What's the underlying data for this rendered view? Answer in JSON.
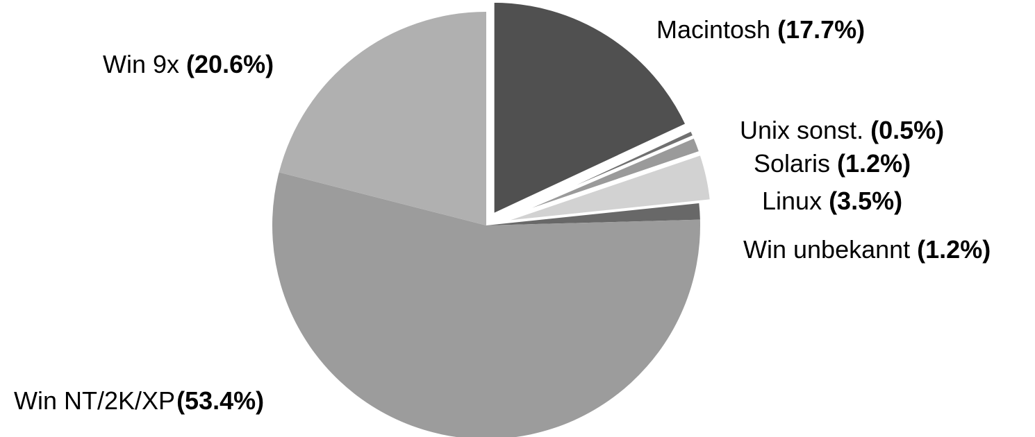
{
  "chart_data": {
    "type": "pie",
    "categories": [
      "Macintosh",
      "Unix sonst.",
      "Solaris",
      "Linux",
      "Win unbekannt",
      "Win NT/2K/XP",
      "Win 9x"
    ],
    "values": [
      17.7,
      0.5,
      1.2,
      3.5,
      1.2,
      53.4,
      20.6
    ],
    "value_labels": [
      "(17.7%)",
      "(0.5%)",
      "(1.2%)",
      "(3.5%)",
      "(1.2%)",
      "(53.4%)",
      "(20.6%)"
    ],
    "colors": [
      "#505050",
      "#707070",
      "#9a9a9a",
      "#d2d2d2",
      "#686868",
      "#9c9c9c",
      "#b0b0b0"
    ],
    "exploded": [
      true,
      true,
      true,
      true,
      false,
      false,
      false
    ]
  }
}
